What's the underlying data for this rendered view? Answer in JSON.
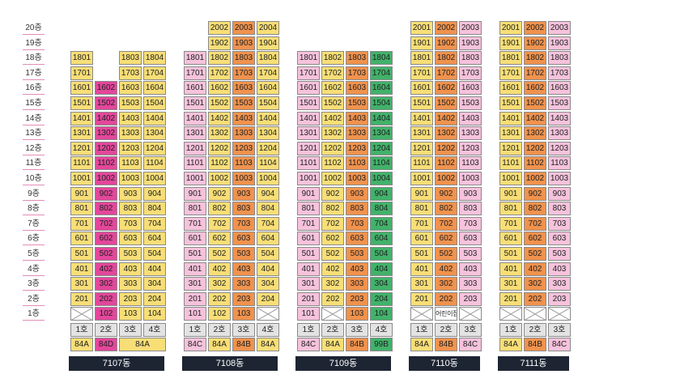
{
  "floor_labels": [
    "20층",
    "19층",
    "18층",
    "17층",
    "16층",
    "15층",
    "14층",
    "13층",
    "12층",
    "11층",
    "10층",
    "9층",
    "8층",
    "7층",
    "6층",
    "5층",
    "4층",
    "3층",
    "2층",
    "1층"
  ],
  "colors": {
    "y": "#f7de76",
    "m": "#e3479b",
    "o": "#f0924d",
    "p": "#f6c2dc",
    "g": "#41b26a",
    "x": "#ffffff",
    "label_bg": "#1d2533",
    "floor_line": "#e58cb8"
  },
  "buildings": [
    {
      "name": "7107동",
      "label_left": 85,
      "label_width": 118,
      "cols": [
        {
          "ho": "1호",
          "col_color": "y",
          "top": 18
        },
        {
          "ho": "2호",
          "col_color": "m",
          "top": 16
        },
        {
          "ho": "3호",
          "col_color": "y",
          "top": 18
        },
        {
          "ho": "4호",
          "col_color": "y",
          "top": 18
        }
      ],
      "x_cells": [
        "1-0"
      ],
      "type_cells": [
        {
          "cols": [
            0
          ],
          "text": "84A",
          "color": "y"
        },
        {
          "cols": [
            1
          ],
          "text": "84D",
          "color": "m"
        },
        {
          "cols": [
            2,
            3
          ],
          "text": "84A",
          "color": "y"
        }
      ]
    },
    {
      "name": "7108동",
      "label_left": 225,
      "label_width": 118,
      "cols": [
        {
          "ho": "1호",
          "col_color": "p",
          "top": 18
        },
        {
          "ho": "2호",
          "col_color": "y",
          "top": 20
        },
        {
          "ho": "3호",
          "col_color": "o",
          "top": 20
        },
        {
          "ho": "4호",
          "col_color": "y",
          "top": 20
        }
      ],
      "x_cells": [
        "1-3"
      ],
      "type_cells": [
        {
          "cols": [
            0
          ],
          "text": "84C",
          "color": "p"
        },
        {
          "cols": [
            1
          ],
          "text": "84A",
          "color": "y"
        },
        {
          "cols": [
            2
          ],
          "text": "84B",
          "color": "o"
        },
        {
          "cols": [
            3
          ],
          "text": "84A",
          "color": "y"
        }
      ]
    },
    {
      "name": "7109동",
      "label_left": 365,
      "label_width": 118,
      "cols": [
        {
          "ho": "1호",
          "col_color": "p",
          "top": 18
        },
        {
          "ho": "2호",
          "col_color": "y",
          "top": 18
        },
        {
          "ho": "3호",
          "col_color": "o",
          "top": 18
        },
        {
          "ho": "4호",
          "col_color": "g",
          "top": 18
        }
      ],
      "x_cells": [
        "1-1"
      ],
      "type_cells": [
        {
          "cols": [
            0
          ],
          "text": "84C",
          "color": "p"
        },
        {
          "cols": [
            1
          ],
          "text": "84A",
          "color": "y"
        },
        {
          "cols": [
            2
          ],
          "text": "84B",
          "color": "o"
        },
        {
          "cols": [
            3
          ],
          "text": "99B",
          "color": "g"
        }
      ]
    },
    {
      "name": "7110동",
      "label_left": 505,
      "label_width": 88,
      "cols": [
        {
          "ho": "1호",
          "col_color": "y",
          "top": 20
        },
        {
          "ho": "2호",
          "col_color": "o",
          "top": 20
        },
        {
          "ho": "3호",
          "col_color": "p",
          "top": 20
        }
      ],
      "x_cells": [
        "1-0",
        "1-2"
      ],
      "special_cells": [
        {
          "floor": 1,
          "col": 1,
          "text": "어린이집"
        }
      ],
      "type_cells": [
        {
          "cols": [
            0
          ],
          "text": "84A",
          "color": "y"
        },
        {
          "cols": [
            1
          ],
          "text": "84B",
          "color": "o"
        },
        {
          "cols": [
            2
          ],
          "text": "84C",
          "color": "p"
        }
      ]
    },
    {
      "name": "7111동",
      "label_left": 615,
      "label_width": 88,
      "cols": [
        {
          "ho": "1호",
          "col_color": "y",
          "top": 20
        },
        {
          "ho": "2호",
          "col_color": "o",
          "top": 20
        },
        {
          "ho": "3호",
          "col_color": "p",
          "top": 20
        }
      ],
      "x_cells": [
        "1-0",
        "1-1",
        "1-2"
      ],
      "type_cells": [
        {
          "cols": [
            0
          ],
          "text": "84A",
          "color": "y"
        },
        {
          "cols": [
            1
          ],
          "text": "84B",
          "color": "o"
        },
        {
          "cols": [
            2
          ],
          "text": "84C",
          "color": "p"
        }
      ]
    }
  ]
}
